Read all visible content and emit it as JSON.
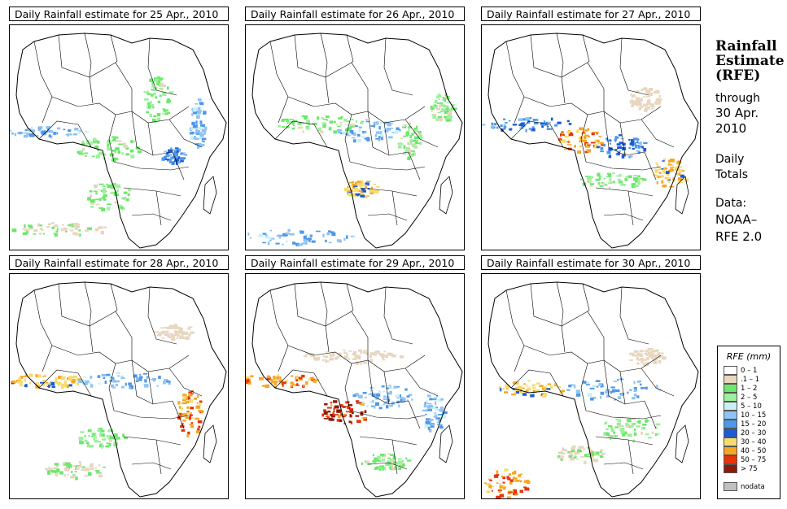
{
  "panels": [
    {
      "title": "Daily Rainfall estimate for  25 Apr., 2010",
      "day": 25
    },
    {
      "title": "Daily Rainfall estimate for  26 Apr., 2010",
      "day": 26
    },
    {
      "title": "Daily Rainfall estimate for  27 Apr., 2010",
      "day": 27
    },
    {
      "title": "Daily Rainfall estimate for  28 Apr., 2010",
      "day": 28
    },
    {
      "title": "Daily Rainfall estimate for  29 Apr., 2010",
      "day": 29
    },
    {
      "title": "Daily Rainfall estimate for  30 Apr., 2010",
      "day": 30
    }
  ],
  "side": {
    "title_line1": "Rainfall",
    "title_line2": "Estimate",
    "title_line3": "(RFE)",
    "through": "through",
    "date_line1": "30 Apr.",
    "date_line2": "2010",
    "daily": "Daily",
    "totals": "Totals",
    "data_label": "Data:",
    "source_line1": "NOAA–",
    "source_line2": "RFE 2.0"
  },
  "legend": {
    "title": "RFE (mm)",
    "items": [
      {
        "label": "0 – 1",
        "color": "#ffffff"
      },
      {
        "label": ".1 – 1",
        "color": "#e8d6bf"
      },
      {
        "label": "1 – 2",
        "color": "#6be86b"
      },
      {
        "label": "2 – 5",
        "color": "#9ef09e"
      },
      {
        "label": "5 – 10",
        "color": "#c9f0f5"
      },
      {
        "label": "10 – 15",
        "color": "#8ec3f2"
      },
      {
        "label": "15 – 20",
        "color": "#4f97e8"
      },
      {
        "label": "20 – 30",
        "color": "#1c5bd6"
      },
      {
        "label": "30 – 40",
        "color": "#f5dc6e"
      },
      {
        "label": "40 – 50",
        "color": "#f5a623"
      },
      {
        "label": "50 – 75",
        "color": "#e8320c"
      },
      {
        "label": "> 75",
        "color": "#8c1a0a"
      },
      {
        "label": "nodata",
        "color": "#c0c0c0"
      }
    ]
  }
}
